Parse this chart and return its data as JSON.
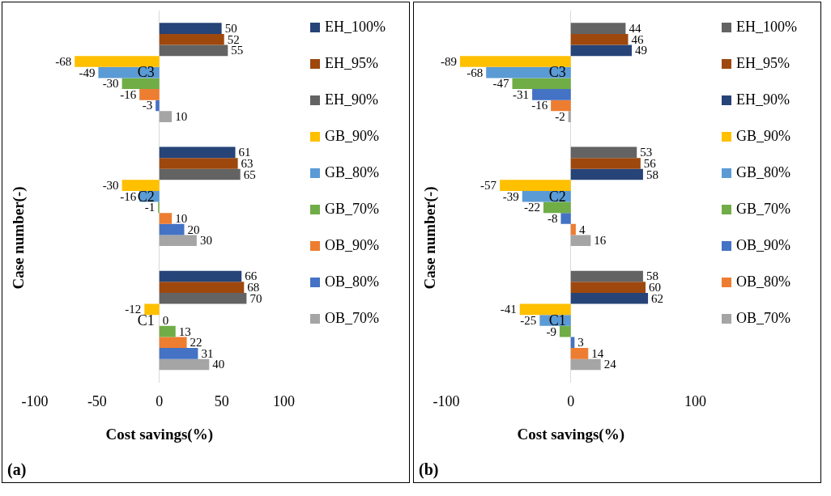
{
  "chart_data": [
    {
      "type": "bar",
      "orientation": "horizontal",
      "categories": [
        "C3",
        "C2",
        "C1"
      ],
      "xlabel": "Cost savings(%)",
      "ylabel": "Case number(-)",
      "xlim": [
        -100,
        100
      ],
      "xticks": [
        -100,
        -50,
        0,
        50,
        100
      ],
      "legend": "right",
      "data_labels": true,
      "annotations": [
        "(a)"
      ],
      "series": [
        {
          "name": "EH_100%",
          "color": "#264478",
          "values": [
            50,
            61,
            66
          ]
        },
        {
          "name": "EH_95%",
          "color": "#9e480e",
          "values": [
            52,
            63,
            68
          ]
        },
        {
          "name": "EH_90%",
          "color": "#636363",
          "values": [
            55,
            65,
            70
          ]
        },
        {
          "name": "GB_90%",
          "color": "#ffc000",
          "values": [
            -68,
            -30,
            -12
          ]
        },
        {
          "name": "GB_80%",
          "color": "#5b9bd5",
          "values": [
            -49,
            -16,
            0
          ]
        },
        {
          "name": "GB_70%",
          "color": "#70ad47",
          "values": [
            -30,
            -1,
            13
          ]
        },
        {
          "name": "OB_90%",
          "color": "#ed7d31",
          "values": [
            -16,
            10,
            22
          ]
        },
        {
          "name": "OB_80%",
          "color": "#4472c4",
          "values": [
            -3,
            20,
            31
          ]
        },
        {
          "name": "OB_70%",
          "color": "#a5a5a5",
          "values": [
            10,
            30,
            40
          ]
        }
      ]
    },
    {
      "type": "bar",
      "orientation": "horizontal",
      "categories": [
        "C3",
        "C2",
        "C1"
      ],
      "xlabel": "Cost savings(%)",
      "ylabel": "Case number(-)",
      "xlim": [
        -100,
        100
      ],
      "xticks": [
        -100,
        0,
        100
      ],
      "legend": "right",
      "data_labels": true,
      "annotations": [
        "(b)"
      ],
      "series": [
        {
          "name": "EH_100%",
          "color": "#636363",
          "values": [
            44,
            53,
            58
          ]
        },
        {
          "name": "EH_95%",
          "color": "#9e480e",
          "values": [
            46,
            56,
            60
          ]
        },
        {
          "name": "EH_90%",
          "color": "#264478",
          "values": [
            49,
            58,
            62
          ]
        },
        {
          "name": "GB_90%",
          "color": "#ffc000",
          "values": [
            -89,
            -57,
            -41
          ]
        },
        {
          "name": "GB_80%",
          "color": "#5b9bd5",
          "values": [
            -68,
            -39,
            -25
          ]
        },
        {
          "name": "GB_70%",
          "color": "#70ad47",
          "values": [
            -47,
            -22,
            -9
          ]
        },
        {
          "name": "OB_90%",
          "color": "#4472c4",
          "values": [
            -31,
            -8,
            3
          ]
        },
        {
          "name": "OB_80%",
          "color": "#ed7d31",
          "values": [
            -16,
            4,
            14
          ]
        },
        {
          "name": "OB_70%",
          "color": "#a5a5a5",
          "values": [
            -2,
            16,
            24
          ]
        }
      ]
    }
  ]
}
